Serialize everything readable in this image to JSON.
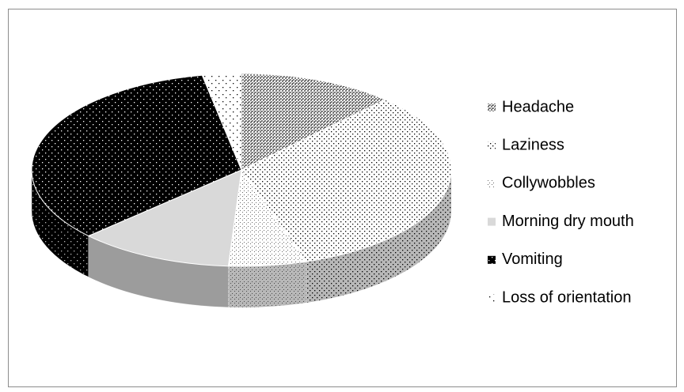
{
  "chart_data": {
    "type": "pie",
    "categories": [
      "Headache",
      "Laziness",
      "Collywobbles",
      "Morning dry mouth",
      "Vomiting",
      "Loss of orientation"
    ],
    "values": [
      12,
      33,
      6,
      12,
      34,
      3
    ],
    "colors": [
      "#7f7f7f",
      "#ffffff",
      "#ffffff",
      "#d9d9d9",
      "#000000",
      "#ffffff"
    ],
    "legend": "right"
  }
}
